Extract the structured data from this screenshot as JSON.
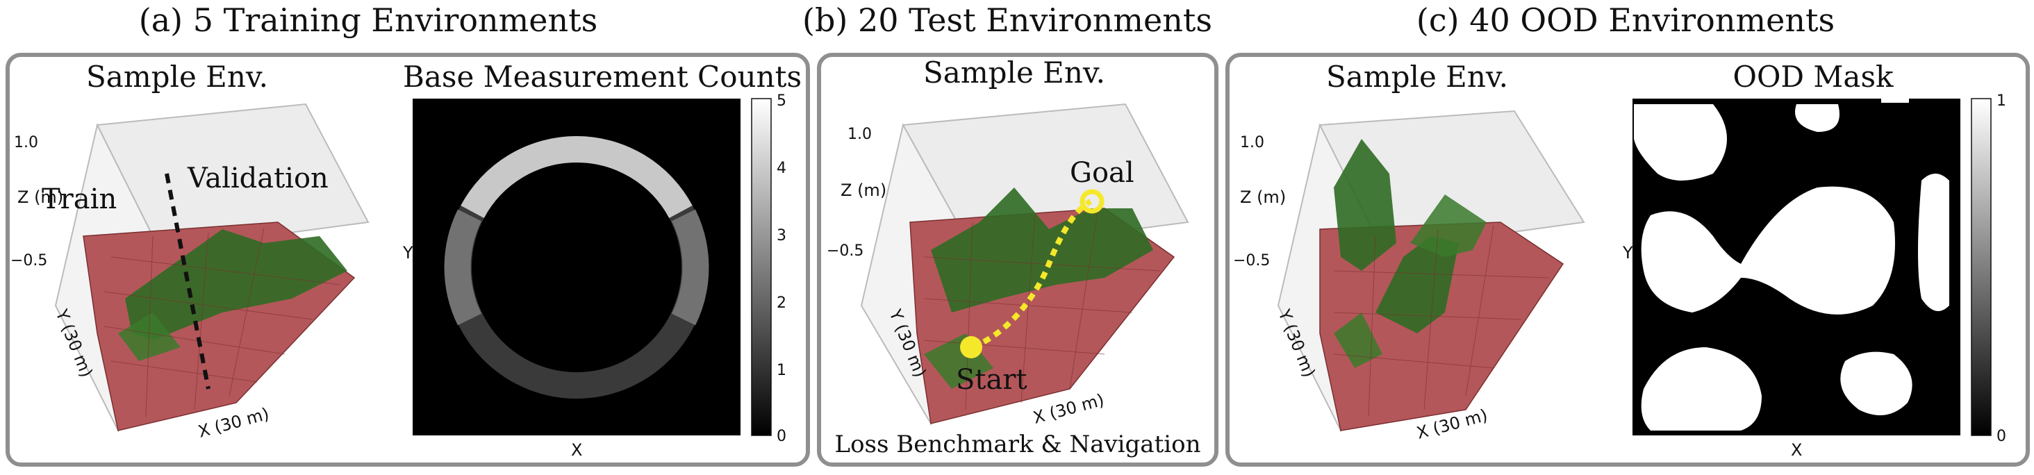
{
  "sections": {
    "a_title": "(a) 5 Training Environments",
    "b_title": "(b) 20 Test Environments",
    "c_title": "(c) 40 OOD Environments"
  },
  "panel_a": {
    "env_title": "Sample Env.",
    "counts_title": "Base Measurement Counts",
    "z_label": "Z (m)",
    "y_label": "Y (30 m)",
    "x_label": "X (30 m)",
    "z_top": "1.0",
    "z_bottom": "−0.5",
    "train": "Train",
    "validation": "Validation",
    "heat_xlabel": "X",
    "heat_ylabel": "Y",
    "colorbar_ticks": [
      "0",
      "1",
      "2",
      "3",
      "4",
      "5"
    ]
  },
  "panel_b": {
    "env_title": "Sample Env.",
    "z_label": "Z (m)",
    "y_label": "Y (30 m)",
    "x_label": "X (30 m)",
    "z_top": "1.0",
    "z_bottom": "−0.5",
    "goal": "Goal",
    "start": "Start",
    "caption": "Loss Benchmark & Navigation"
  },
  "panel_c": {
    "env_title": "Sample Env.",
    "mask_title": "OOD Mask",
    "z_label": "Z (m)",
    "y_label": "Y (30 m)",
    "x_label": "X (30 m)",
    "z_top": "1.0",
    "z_bottom": "−0.5",
    "mask_xlabel": "X",
    "mask_ylabel": "Y",
    "colorbar_ticks": [
      "0",
      "1"
    ]
  },
  "colors": {
    "terrain_red": "#b4575a",
    "terrain_green": "#2f6b23",
    "path_yellow": "#f5e82a",
    "frame_gray": "#8f8f8f"
  }
}
